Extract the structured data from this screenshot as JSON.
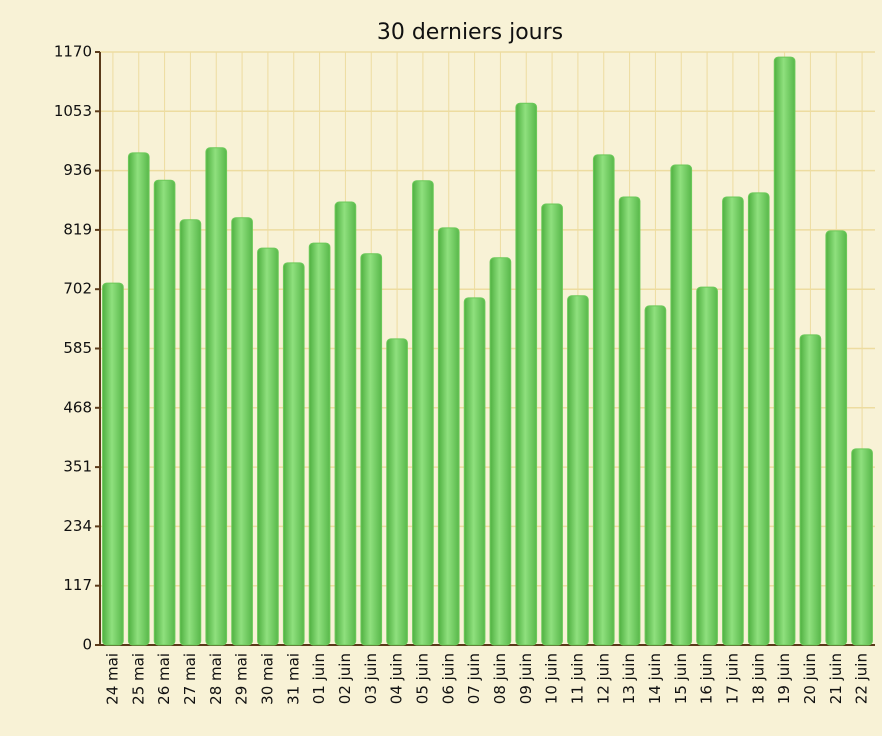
{
  "chart_data": {
    "type": "bar",
    "title": "30 derniers jours",
    "categories": [
      "24 mai",
      "25 mai",
      "26 mai",
      "27 mai",
      "28 mai",
      "29 mai",
      "30 mai",
      "31 mai",
      "01 juin",
      "02 juin",
      "03 juin",
      "04 juin",
      "05 juin",
      "06 juin",
      "07 juin",
      "08 juin",
      "09 juin",
      "10 juin",
      "11 juin",
      "12 juin",
      "13 juin",
      "14 juin",
      "15 juin",
      "16 juin",
      "17 juin",
      "18 juin",
      "19 juin",
      "20 juin",
      "21 juin",
      "22 juin"
    ],
    "values": [
      714,
      971,
      917,
      839,
      981,
      843,
      783,
      754,
      793,
      874,
      772,
      604,
      916,
      823,
      685,
      764,
      1069,
      870,
      689,
      967,
      884,
      669,
      947,
      706,
      884,
      892,
      1160,
      612,
      817,
      387
    ],
    "color": "#6cc95a",
    "ylim": [
      0,
      1170
    ],
    "yticks": [
      0,
      117,
      234,
      351,
      468,
      585,
      702,
      819,
      936,
      1053,
      1170
    ],
    "grid": true
  }
}
